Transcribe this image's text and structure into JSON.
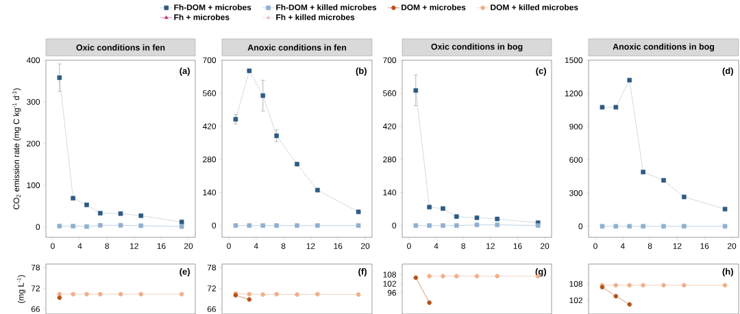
{
  "chart_data": [
    {
      "type": "line",
      "title": "Oxic conditions in fen",
      "ylabel": "CO$_{2}$ emission rate (mg C kg$^{-1}$ d$^{-1}$)",
      "x": [
        1,
        3,
        5,
        7,
        10,
        13,
        19
      ],
      "xlim": [
        -1,
        21
      ],
      "xticks": [
        0,
        4,
        8,
        12,
        16,
        20
      ],
      "ylim": [
        -25,
        400
      ],
      "yticks": [
        0,
        100,
        200,
        300,
        400
      ],
      "legend": "top",
      "annotations": [
        "(a)"
      ],
      "series": [
        {
          "name": "Fh-DOM + microbes",
          "color": "#2e5b84",
          "marker": "square",
          "line_style": "dotted",
          "values": [
            358,
            69,
            53,
            33,
            32,
            27,
            12
          ],
          "errors": [
            33,
            null,
            null,
            null,
            null,
            null,
            null
          ]
        },
        {
          "name": "Fh-DOM + killed microbes",
          "color": "#8fb0d0",
          "marker": "square",
          "line_style": "solid",
          "values": [
            2,
            2,
            1,
            4,
            4,
            3,
            1
          ]
        },
        {
          "name": "DOM + microbes",
          "color": "#b5521b",
          "marker": "circle",
          "line_style": "solid",
          "values": [
            null,
            null,
            null,
            null,
            null,
            null,
            null
          ]
        },
        {
          "name": "DOM + killed microbes",
          "color": "#eeb08a",
          "marker": "circle",
          "line_style": "solid",
          "values": [
            null,
            null,
            null,
            null,
            null,
            null,
            null
          ]
        },
        {
          "name": "Fh + microbes",
          "color": "#c2357f",
          "marker": "triangle",
          "line_style": "solid",
          "values": [
            null,
            null,
            null,
            null,
            null,
            null,
            null
          ]
        },
        {
          "name": "Fh + killed microbes",
          "color": "#f0b8d0",
          "marker": "triangle",
          "line_style": "solid",
          "values": [
            null,
            null,
            null,
            null,
            null,
            null,
            null
          ]
        }
      ]
    },
    {
      "type": "line",
      "title": "Anoxic conditions in fen",
      "x": [
        1,
        3,
        5,
        7,
        10,
        13,
        19
      ],
      "xlim": [
        -1,
        21
      ],
      "xticks": [
        0,
        4,
        8,
        12,
        16,
        20
      ],
      "ylim": [
        -50,
        700
      ],
      "yticks": [
        0,
        140,
        280,
        420,
        560,
        700
      ],
      "annotations": [
        "(b)"
      ],
      "series": [
        {
          "color": "#2e5b84",
          "marker": "square",
          "line_style": "dotted",
          "values": [
            450,
            655,
            550,
            380,
            260,
            150,
            58
          ],
          "errors": [
            20,
            null,
            65,
            25,
            null,
            null,
            null
          ]
        },
        {
          "color": "#8fb0d0",
          "marker": "square",
          "line_style": "solid",
          "values": [
            0,
            0,
            0,
            0,
            0,
            0,
            0
          ]
        }
      ]
    },
    {
      "type": "line",
      "title": "Oxic conditions in bog",
      "x": [
        1,
        3,
        5,
        7,
        10,
        13,
        19
      ],
      "xlim": [
        -1,
        21
      ],
      "xticks": [
        0,
        4,
        8,
        12,
        16,
        20
      ],
      "ylim": [
        -50,
        700
      ],
      "yticks": [
        0,
        140,
        280,
        420,
        560,
        700
      ],
      "annotations": [
        "(c)"
      ],
      "series": [
        {
          "color": "#2e5b84",
          "marker": "square",
          "line_style": "dotted",
          "values": [
            572,
            78,
            72,
            38,
            33,
            28,
            12
          ],
          "errors": [
            65,
            null,
            null,
            null,
            null,
            null,
            null
          ]
        },
        {
          "color": "#8fb0d0",
          "marker": "square",
          "line_style": "solid",
          "values": [
            0,
            0,
            0,
            0,
            3,
            3,
            0
          ]
        }
      ]
    },
    {
      "type": "line",
      "title": "Anoxic conditions in bog",
      "x": [
        1,
        3,
        5,
        7,
        10,
        13,
        19
      ],
      "xlim": [
        -1,
        21
      ],
      "xticks": [
        0,
        4,
        8,
        12,
        16,
        20
      ],
      "ylim": [
        -100,
        1500
      ],
      "yticks": [
        0,
        300,
        600,
        900,
        1200,
        1500
      ],
      "annotations": [
        "(d)"
      ],
      "series": [
        {
          "color": "#2e5b84",
          "marker": "square",
          "line_style": "dotted",
          "values": [
            1075,
            1075,
            1320,
            490,
            415,
            265,
            155
          ]
        },
        {
          "color": "#8fb0d0",
          "marker": "square",
          "line_style": "solid",
          "values": [
            0,
            0,
            0,
            0,
            0,
            0,
            0
          ]
        }
      ]
    },
    {
      "type": "line",
      "ylabel": "(mg L$^{-1}$)",
      "x": [
        1,
        3,
        5,
        7,
        10,
        13,
        19
      ],
      "xlim": [
        -1,
        21
      ],
      "ylim": [
        64.6,
        79
      ],
      "yticks": [
        66,
        72,
        78
      ],
      "tick_labels": "y",
      "annotations": [
        "(e)"
      ],
      "series": [
        {
          "color": "#eeb08a",
          "marker": "circle",
          "line_style": "solid",
          "values": [
            70.3,
            70.3,
            70.3,
            70.3,
            70.3,
            70.3,
            70.3
          ]
        },
        {
          "color": "#b5521b",
          "marker": "circle",
          "line_style": "solid",
          "values": [
            69.3,
            null,
            null,
            null,
            null,
            null,
            null
          ]
        }
      ]
    },
    {
      "type": "line",
      "x": [
        1,
        3,
        5,
        7,
        10,
        13,
        19
      ],
      "xlim": [
        -1,
        21
      ],
      "ylim": [
        64.6,
        79
      ],
      "yticks": [
        66,
        72,
        78
      ],
      "tick_labels": "y",
      "annotations": [
        "(f)"
      ],
      "series": [
        {
          "color": "#eeb08a",
          "marker": "circle",
          "line_style": "solid",
          "values": [
            70.5,
            70.3,
            70.2,
            70.3,
            70.2,
            70.3,
            70.2
          ]
        },
        {
          "color": "#b5521b",
          "marker": "circle",
          "line_style": "solid",
          "values": [
            70,
            68.8,
            null,
            null,
            null,
            null,
            null
          ]
        }
      ]
    },
    {
      "type": "line",
      "x": [
        1,
        3,
        5,
        7,
        10,
        13,
        19
      ],
      "xlim": [
        -1,
        21
      ],
      "ylim": [
        82,
        115
      ],
      "yticks": [
        96,
        102,
        108
      ],
      "tick_labels": "y",
      "annotations": [
        "(g)"
      ],
      "series": [
        {
          "color": "#eeb08a",
          "marker": "circle",
          "line_style": "solid",
          "values": [
            null,
            107,
            107,
            107,
            107,
            107,
            107
          ]
        },
        {
          "color": "#b5521b",
          "marker": "circle",
          "line_style": "solid",
          "values": [
            106,
            89.5,
            null,
            null,
            null,
            null,
            null
          ]
        }
      ]
    },
    {
      "type": "line",
      "x": [
        1,
        3,
        5,
        7,
        10,
        13,
        19
      ],
      "xlim": [
        -1,
        21
      ],
      "ylim": [
        97,
        115.25
      ],
      "yticks": [
        102,
        108
      ],
      "tick_labels": "y",
      "annotations": [
        "(h)"
      ],
      "series": [
        {
          "color": "#eeb08a",
          "marker": "circle",
          "line_style": "solid",
          "values": [
            107.5,
            107.5,
            107.5,
            107.5,
            107.5,
            107.5,
            107.5
          ]
        },
        {
          "color": "#b5521b",
          "marker": "circle",
          "line_style": "solid",
          "values": [
            106.8,
            103.5,
            100.5,
            null,
            null,
            null,
            null
          ]
        }
      ]
    }
  ]
}
